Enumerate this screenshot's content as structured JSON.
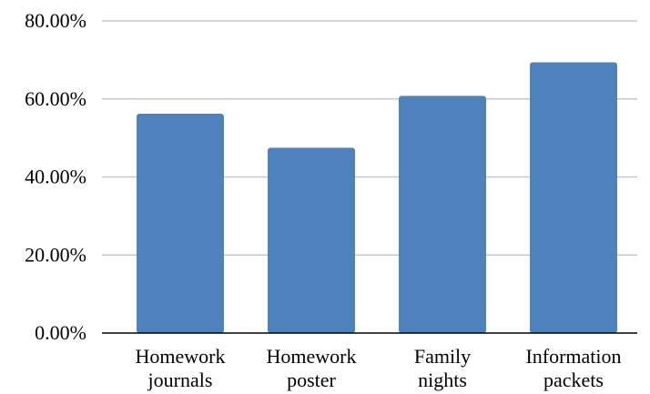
{
  "chart_data": {
    "type": "bar",
    "categories": [
      [
        "Homework",
        "journals"
      ],
      [
        "Homework",
        "poster"
      ],
      [
        "Family",
        "nights"
      ],
      [
        "Information",
        "packets"
      ]
    ],
    "values": [
      56.2,
      47.5,
      60.8,
      69.4
    ],
    "ylim": [
      0,
      80
    ],
    "yticks": [
      0,
      20,
      40,
      60,
      80
    ],
    "ytick_labels": [
      "0.00%",
      "20.00%",
      "40.00%",
      "60.00%",
      "80.00%"
    ],
    "grid": true,
    "bar_color": "#4f81bd",
    "title": "",
    "xlabel": "",
    "ylabel": ""
  }
}
